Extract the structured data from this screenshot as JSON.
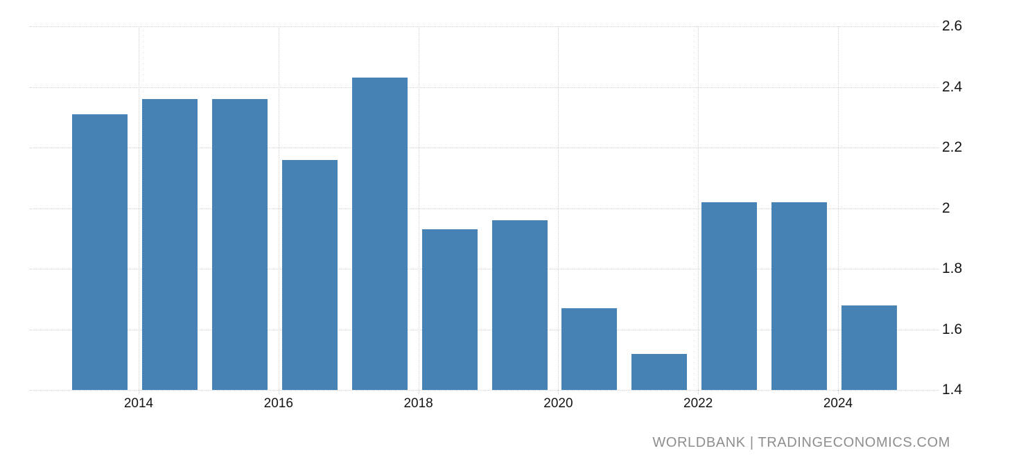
{
  "chart_data": {
    "type": "bar",
    "title": "",
    "xlabel": "",
    "ylabel": "",
    "categories": [
      "2013",
      "2014",
      "2015",
      "2016",
      "2017",
      "2018",
      "2019",
      "2020",
      "2021",
      "2022",
      "2023",
      "2024"
    ],
    "values": [
      2.31,
      2.36,
      2.36,
      2.16,
      2.43,
      1.93,
      1.96,
      1.67,
      1.52,
      2.02,
      2.02,
      1.68
    ],
    "ylim": [
      1.4,
      2.6
    ],
    "ytick_interval": 0.2,
    "y_tick_labels": [
      "2.6",
      "2.4",
      "2.2",
      "2",
      "1.8",
      "1.6",
      "1.4"
    ],
    "x_tick_labels": [
      "2014",
      "2016",
      "2018",
      "2020",
      "2022",
      "2024"
    ],
    "x_tick_years": [
      2014,
      2016,
      2018,
      2020,
      2022,
      2024
    ],
    "grid": "dotted",
    "legend_position": "none",
    "y_axis_side": "right"
  },
  "colors": {
    "bar": "#4782b4",
    "gridline": "#d2d2d2",
    "axis_label": "#141414",
    "watermark": "#8e8e8e",
    "background": "#ffffff"
  },
  "watermark": {
    "text": "WORLDBANK | TRADINGECONOMICS.COM"
  }
}
